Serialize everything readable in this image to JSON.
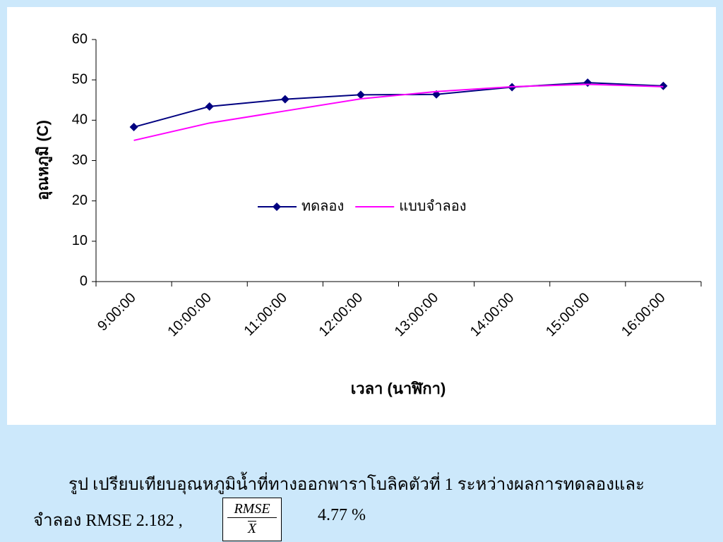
{
  "chart_data": {
    "type": "line",
    "categories": [
      "9:00:00",
      "10:00:00",
      "11:00:00",
      "12:00:00",
      "13:00:00",
      "14:00:00",
      "15:00:00",
      "16:00:00"
    ],
    "series": [
      {
        "name": "ทดลอง",
        "color": "#000080",
        "values": [
          38.3,
          43.4,
          45.2,
          46.3,
          46.4,
          48.2,
          49.3,
          48.5
        ]
      },
      {
        "name": "แบบจำลอง",
        "color": "#ff00ff",
        "values": [
          35.0,
          39.3,
          42.3,
          45.3,
          47.1,
          48.3,
          48.9,
          48.3
        ]
      }
    ],
    "y_label": "อุณหภูมิ (C)",
    "x_label": "เวลา (นาฬิกา)",
    "ylim": [
      0,
      60
    ],
    "yticks": [
      0,
      10,
      20,
      30,
      40,
      50,
      60
    ],
    "grid": false,
    "legend": "center"
  },
  "caption": {
    "line1": "รูป เปรียบเทียบอุณหภูมิน้ำที่ทางออกพาราโบลิคตัวที่ 1 ระหว่างผลการทดลองและ",
    "line2": "จำลอง RMSE 2.182 ,",
    "numerator": "RMSE",
    "denominator": "X",
    "result": "4.77 %"
  }
}
